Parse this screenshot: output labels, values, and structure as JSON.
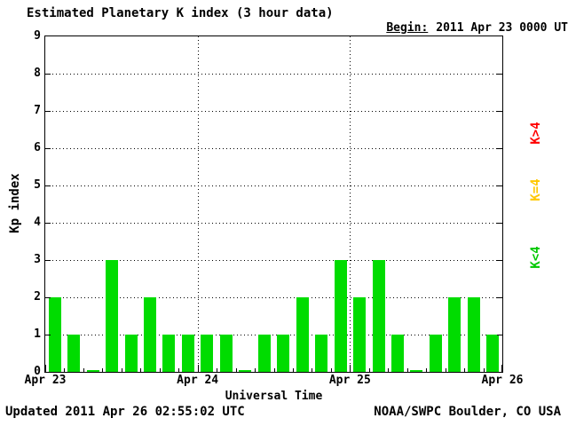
{
  "chart_data": {
    "type": "bar",
    "title": "Estimated Planetary K index (3 hour data)",
    "begin_label": "Begin:",
    "begin_value": "2011 Apr 23 0000 UTC",
    "xlabel": "Universal Time",
    "ylabel": "Kp index",
    "ylim": [
      0,
      9
    ],
    "yticks": [
      0,
      1,
      2,
      3,
      4,
      5,
      6,
      7,
      8,
      9
    ],
    "x_day_labels": [
      "Apr 23",
      "Apr 24",
      "Apr 25",
      "Apr 26"
    ],
    "bars_per_day": 8,
    "interval_hours": 3,
    "values": [
      2,
      1,
      0,
      3,
      1,
      2,
      1,
      1,
      1,
      1,
      0,
      1,
      1,
      2,
      1,
      3,
      2,
      3,
      1,
      0,
      1,
      2,
      2,
      1
    ],
    "bar_color": "#00dc00",
    "grid": true,
    "legend_position": "right",
    "legend": [
      {
        "label": "K>4",
        "color": "#ff0000"
      },
      {
        "label": "K=4",
        "color": "#ffc800"
      },
      {
        "label": "K<4",
        "color": "#00c800"
      }
    ],
    "footer_left": "Updated 2011 Apr 26 02:55:02 UTC",
    "footer_right": "NOAA/SWPC Boulder, CO USA"
  }
}
